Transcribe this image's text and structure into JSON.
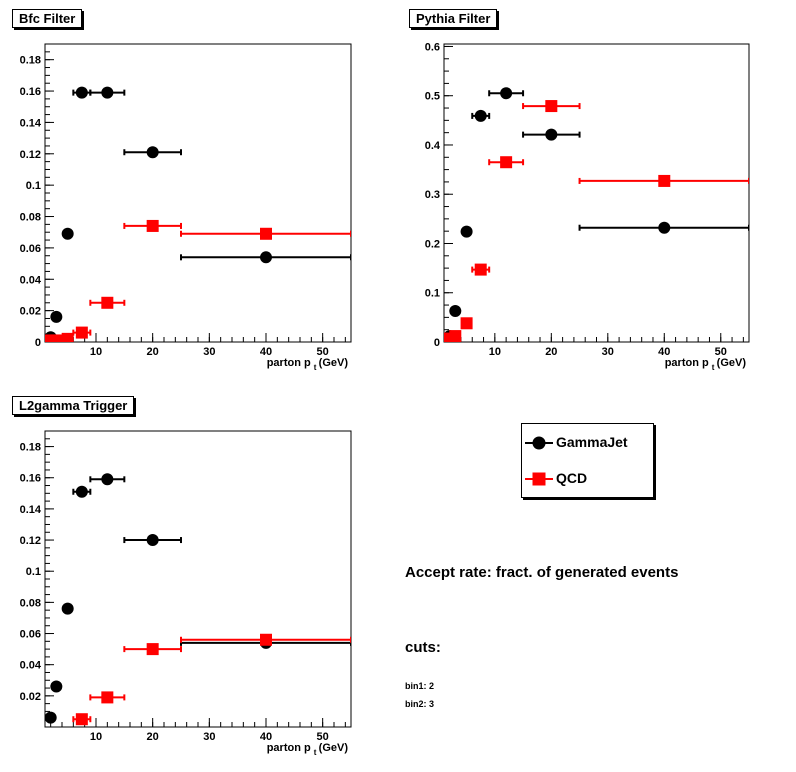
{
  "legend": {
    "gamma_label": "GammaJet",
    "qcd_label": "QCD",
    "gamma_color": "#000000",
    "qcd_color": "#ff0000"
  },
  "notes": {
    "accept_rate": "Accept rate: fract. of generated events",
    "cuts": "cuts:",
    "bin1": "bin1: 2",
    "bin2": "bin2: 3"
  },
  "chart_data": [
    {
      "type": "scatter",
      "title": "Bfc Filter",
      "xlabel": "parton p",
      "xlabel_sub": "t",
      "xlabel_unit": "(GeV)",
      "xlim": [
        1,
        55
      ],
      "ylim": [
        0,
        0.19
      ],
      "xticks": [
        10,
        20,
        30,
        40,
        50
      ],
      "yticks": [
        0.02,
        0.04,
        0.06,
        0.08,
        0.1,
        0.12,
        0.14,
        0.16,
        0.18
      ],
      "ytick_labels": [
        "0.02",
        "0.04",
        "0.06",
        "0.08",
        "0.1",
        "0.12",
        "0.14",
        "0.16",
        "0.18"
      ],
      "zero_label": "0",
      "series": [
        {
          "name": "GammaJet",
          "marker": "circle",
          "color": "#000000",
          "points": [
            {
              "x": 2,
              "y": 0.003,
              "xerr": [
                1.5,
                2.5
              ]
            },
            {
              "x": 3,
              "y": 0.016,
              "xerr": [
                2.5,
                3.5
              ]
            },
            {
              "x": 5,
              "y": 0.069,
              "xerr": [
                4.5,
                5.5
              ]
            },
            {
              "x": 7.5,
              "y": 0.159,
              "xerr": [
                6,
                9
              ]
            },
            {
              "x": 12,
              "y": 0.159,
              "xerr": [
                9,
                15
              ]
            },
            {
              "x": 20,
              "y": 0.121,
              "xerr": [
                15,
                25
              ]
            },
            {
              "x": 40,
              "y": 0.054,
              "xerr": [
                25,
                55
              ]
            }
          ]
        },
        {
          "name": "QCD",
          "marker": "square",
          "color": "#ff0000",
          "points": [
            {
              "x": 2,
              "y": 0.001,
              "xerr": [
                1.5,
                2.5
              ]
            },
            {
              "x": 3,
              "y": 0.001,
              "xerr": [
                2.5,
                3.5
              ]
            },
            {
              "x": 5,
              "y": 0.002,
              "xerr": [
                4.5,
                5.5
              ]
            },
            {
              "x": 7.5,
              "y": 0.006,
              "xerr": [
                6,
                9
              ]
            },
            {
              "x": 12,
              "y": 0.025,
              "xerr": [
                9,
                15
              ]
            },
            {
              "x": 20,
              "y": 0.074,
              "xerr": [
                15,
                25
              ]
            },
            {
              "x": 40,
              "y": 0.069,
              "xerr": [
                25,
                55
              ]
            }
          ]
        }
      ]
    },
    {
      "type": "scatter",
      "title": "Pythia Filter",
      "xlabel": "parton p",
      "xlabel_sub": "t",
      "xlabel_unit": "(GeV)",
      "xlim": [
        1,
        55
      ],
      "ylim": [
        0,
        0.605
      ],
      "xticks": [
        10,
        20,
        30,
        40,
        50
      ],
      "yticks": [
        0.1,
        0.2,
        0.3,
        0.4,
        0.5,
        0.6
      ],
      "ytick_labels": [
        "0.1",
        "0.2",
        "0.3",
        "0.4",
        "0.5",
        "0.6"
      ],
      "zero_label": "0",
      "series": [
        {
          "name": "GammaJet",
          "marker": "circle",
          "color": "#000000",
          "points": [
            {
              "x": 2,
              "y": 0.012,
              "xerr": [
                1.5,
                2.5
              ]
            },
            {
              "x": 3,
              "y": 0.063,
              "xerr": [
                2.5,
                3.5
              ]
            },
            {
              "x": 5,
              "y": 0.224,
              "xerr": [
                4.5,
                5.5
              ]
            },
            {
              "x": 7.5,
              "y": 0.459,
              "xerr": [
                6,
                9
              ]
            },
            {
              "x": 12,
              "y": 0.505,
              "xerr": [
                9,
                15
              ]
            },
            {
              "x": 20,
              "y": 0.421,
              "xerr": [
                15,
                25
              ]
            },
            {
              "x": 40,
              "y": 0.232,
              "xerr": [
                25,
                55
              ]
            }
          ]
        },
        {
          "name": "QCD",
          "marker": "square",
          "color": "#ff0000",
          "points": [
            {
              "x": 2,
              "y": 0.007,
              "xerr": [
                1.5,
                2.5
              ]
            },
            {
              "x": 3,
              "y": 0.012,
              "xerr": [
                2.5,
                3.5
              ]
            },
            {
              "x": 5,
              "y": 0.038,
              "xerr": [
                4.5,
                5.5
              ]
            },
            {
              "x": 7.5,
              "y": 0.147,
              "xerr": [
                6,
                9
              ]
            },
            {
              "x": 12,
              "y": 0.365,
              "xerr": [
                9,
                15
              ]
            },
            {
              "x": 20,
              "y": 0.479,
              "xerr": [
                15,
                25
              ]
            },
            {
              "x": 40,
              "y": 0.327,
              "xerr": [
                25,
                55
              ]
            }
          ]
        }
      ]
    },
    {
      "type": "scatter",
      "title": "L2gamma Trigger",
      "xlabel": "parton p",
      "xlabel_sub": "t",
      "xlabel_unit": "(GeV)",
      "xlim": [
        1,
        55
      ],
      "ylim": [
        0,
        0.19
      ],
      "xticks": [
        10,
        20,
        30,
        40,
        50
      ],
      "yticks": [
        0.02,
        0.04,
        0.06,
        0.08,
        0.1,
        0.12,
        0.14,
        0.16,
        0.18
      ],
      "ytick_labels": [
        "0.02",
        "0.04",
        "0.06",
        "0.08",
        "0.1",
        "0.12",
        "0.14",
        "0.16",
        "0.18"
      ],
      "zero_label": "",
      "series": [
        {
          "name": "GammaJet",
          "marker": "circle",
          "color": "#000000",
          "points": [
            {
              "x": 2,
              "y": 0.006,
              "xerr": [
                1.5,
                2.5
              ]
            },
            {
              "x": 3,
              "y": 0.026,
              "xerr": [
                2.5,
                3.5
              ]
            },
            {
              "x": 5,
              "y": 0.076,
              "xerr": [
                4.5,
                5.5
              ]
            },
            {
              "x": 7.5,
              "y": 0.151,
              "xerr": [
                6,
                9
              ]
            },
            {
              "x": 12,
              "y": 0.159,
              "xerr": [
                9,
                15
              ]
            },
            {
              "x": 20,
              "y": 0.12,
              "xerr": [
                15,
                25
              ]
            },
            {
              "x": 40,
              "y": 0.054,
              "xerr": [
                25,
                55
              ]
            }
          ]
        },
        {
          "name": "QCD",
          "marker": "square",
          "color": "#ff0000",
          "points": [
            {
              "x": 7.5,
              "y": 0.005,
              "xerr": [
                6,
                9
              ]
            },
            {
              "x": 12,
              "y": 0.019,
              "xerr": [
                9,
                15
              ]
            },
            {
              "x": 20,
              "y": 0.05,
              "xerr": [
                15,
                25
              ]
            },
            {
              "x": 40,
              "y": 0.056,
              "xerr": [
                25,
                55
              ]
            }
          ]
        }
      ]
    }
  ]
}
